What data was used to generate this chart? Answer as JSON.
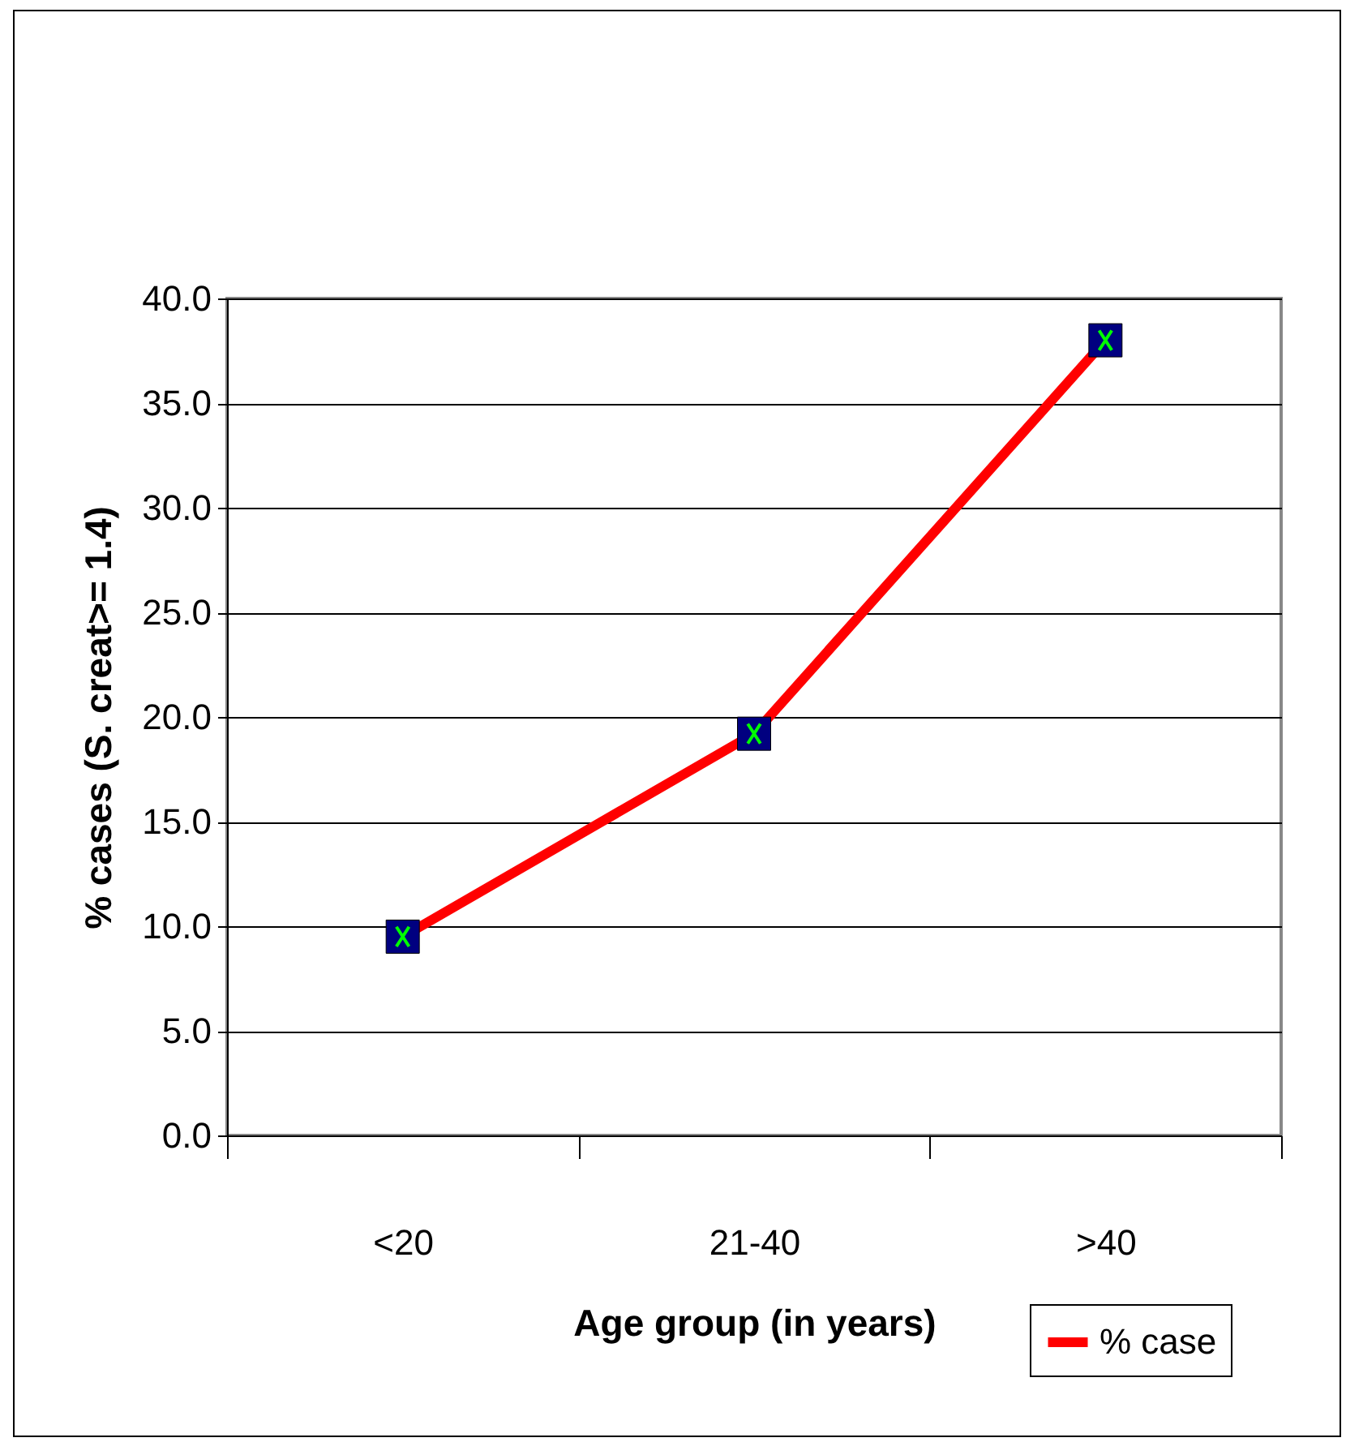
{
  "chart_data": {
    "type": "line",
    "xlabel": "Age group (in years)",
    "ylabel": "% cases (S. creat>= 1.4)",
    "categories": [
      "<20",
      "21-40",
      ">40"
    ],
    "series": [
      {
        "name": "% case",
        "color": "#ff0000",
        "values": [
          9.5,
          19.2,
          38.0
        ]
      }
    ],
    "ylim": [
      0,
      40
    ],
    "yticks": [
      {
        "value": 0,
        "label": "0.0"
      },
      {
        "value": 5,
        "label": "5.0"
      },
      {
        "value": 10,
        "label": "10.0"
      },
      {
        "value": 15,
        "label": "15.0"
      },
      {
        "value": 20,
        "label": "20.0"
      },
      {
        "value": 25,
        "label": "25.0"
      },
      {
        "value": 30,
        "label": "30.0"
      },
      {
        "value": 35,
        "label": "35.0"
      },
      {
        "value": 40,
        "label": "40.0"
      }
    ],
    "grid": "y",
    "legend": "bottom right",
    "marker": "square",
    "line_style": "solid"
  }
}
